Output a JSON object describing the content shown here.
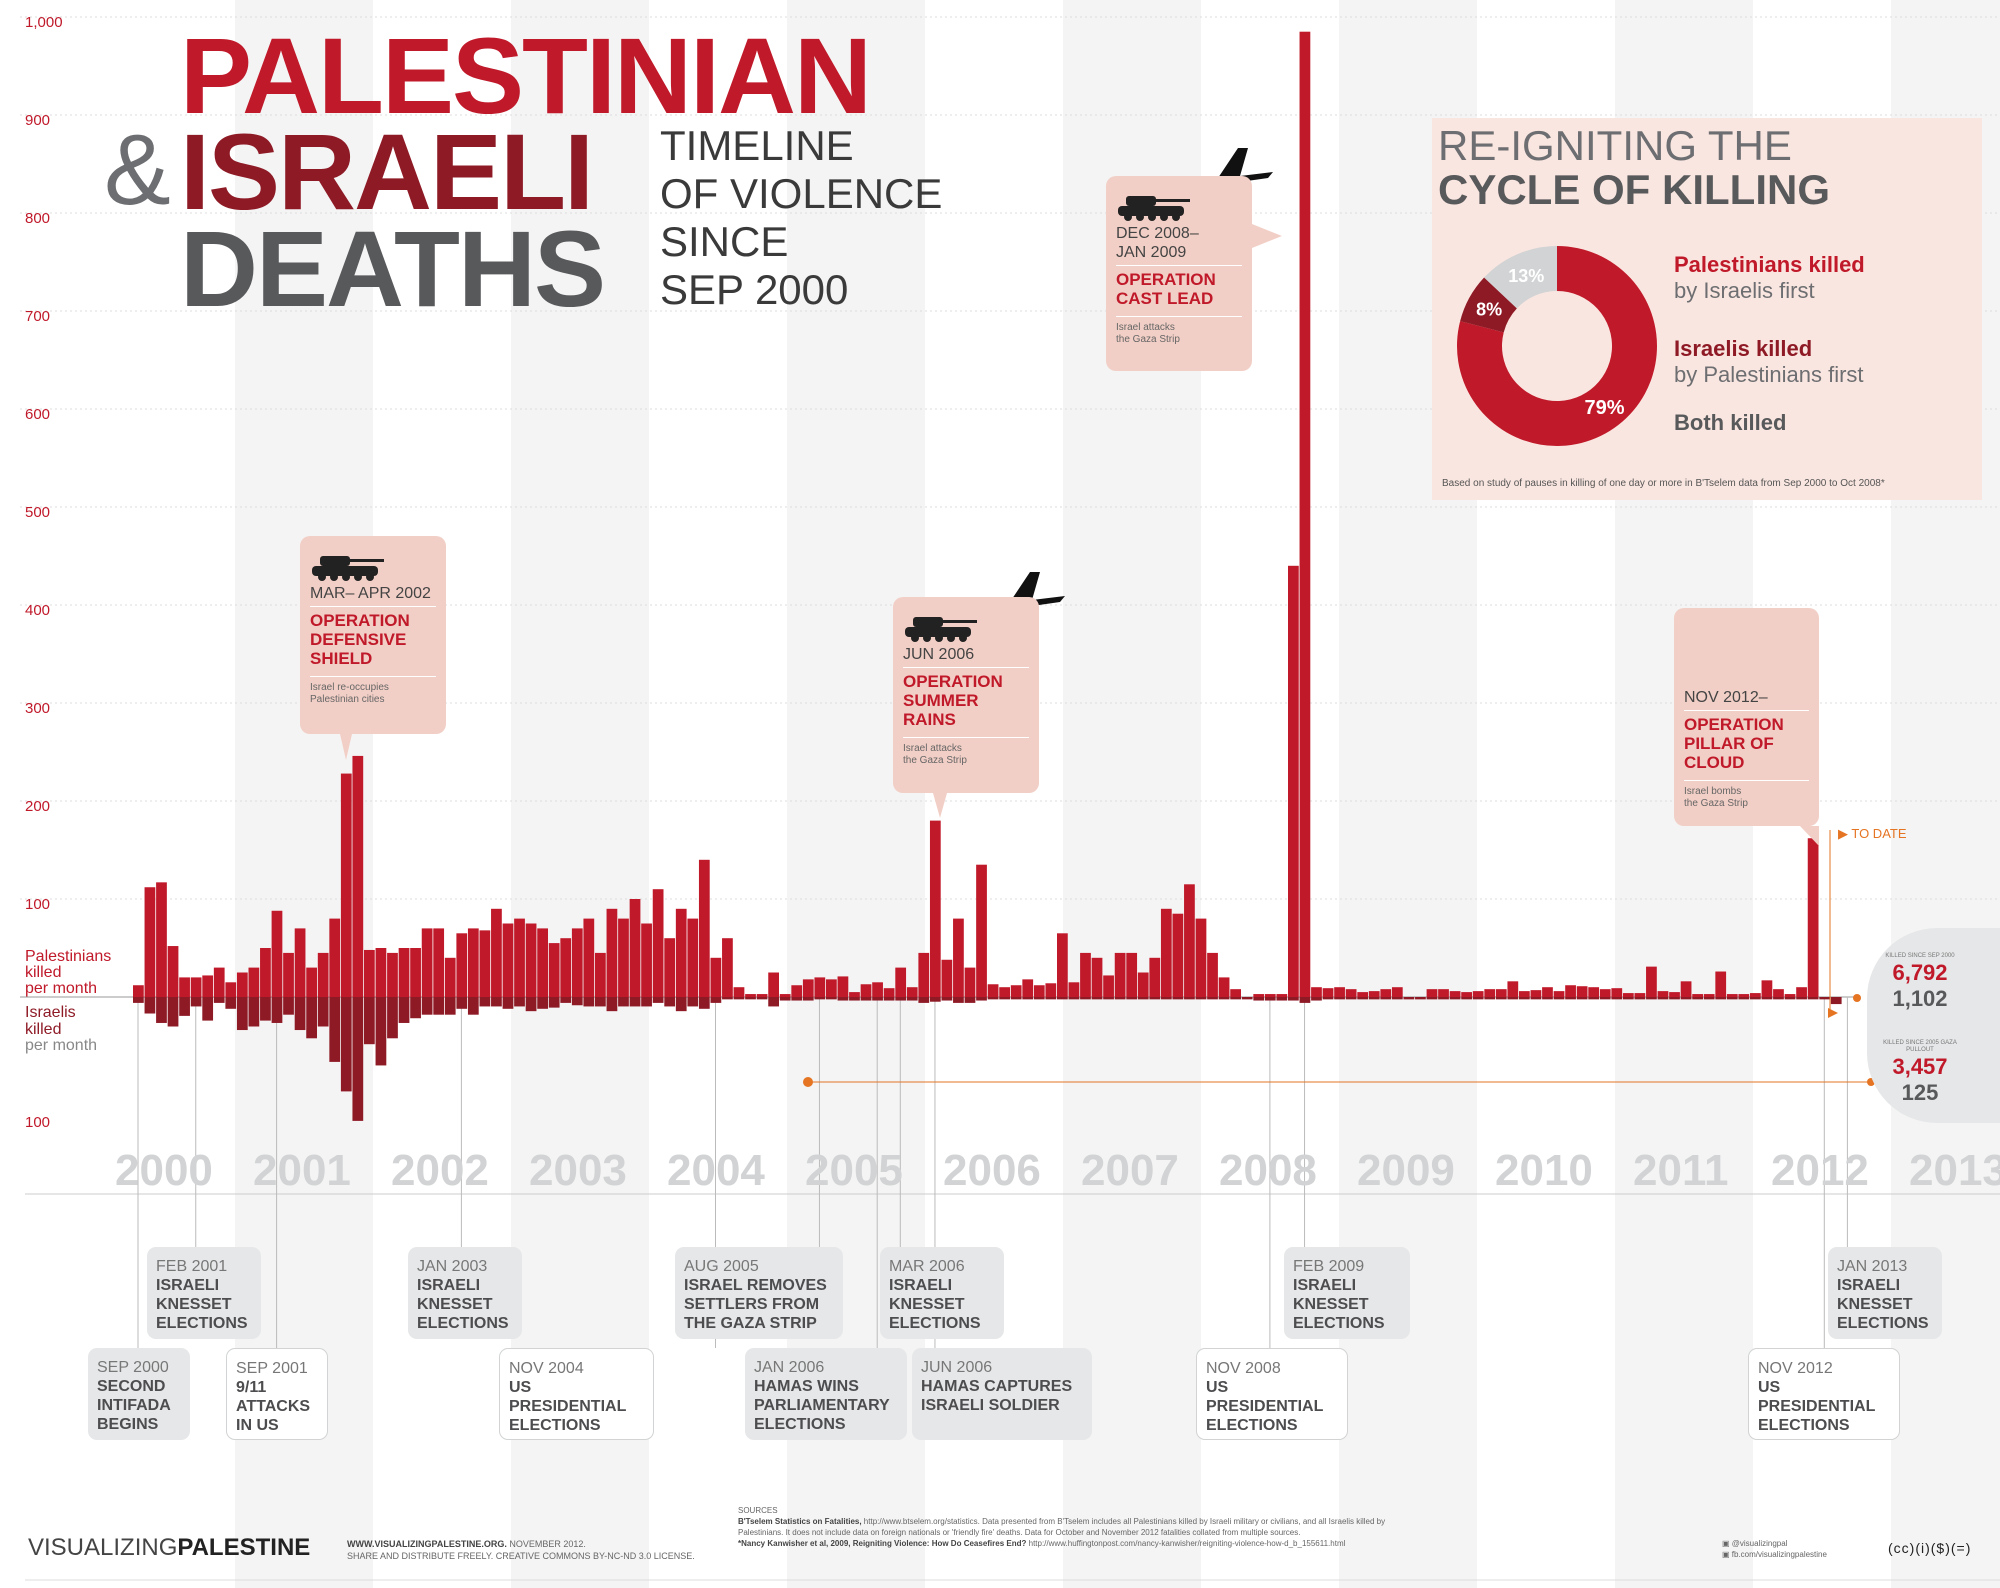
{
  "title": {
    "line1": "PALESTINIAN",
    "amp": "&",
    "line2": "ISRAELI",
    "line3": "DEATHS",
    "sub1": "TIMELINE",
    "sub2": "OF VIOLENCE",
    "sub3": "SINCE",
    "sub4": "SEP 2000"
  },
  "chart_data": {
    "type": "bar",
    "title": "Palestinian & Israeli Deaths - Timeline of Violence since Sep 2000",
    "x_start": "Sep 2000",
    "x_end": "Nov 2012",
    "year_labels": [
      "2000",
      "2001",
      "2002",
      "2003",
      "2004",
      "2005",
      "2006",
      "2007",
      "2008",
      "2009",
      "2010",
      "2011",
      "2012",
      "2013"
    ],
    "yticks_up": [
      "1,000",
      "900",
      "800",
      "700",
      "600",
      "500",
      "400",
      "300",
      "200",
      "100"
    ],
    "ytick_values_up": [
      1000,
      900,
      800,
      700,
      600,
      500,
      400,
      300,
      200,
      100
    ],
    "ytick_down": "100",
    "ytick_down_value": 100,
    "label_pal": [
      "Palestinians",
      "killed"
    ],
    "label_isr": [
      "Israelis",
      "killed"
    ],
    "per_month": "per month",
    "ylim_up": [
      0,
      1000
    ],
    "ylim_down": [
      0,
      120
    ],
    "series": [
      {
        "name": "Palestinians killed per month",
        "values": [
          12,
          112,
          117,
          52,
          20,
          20,
          22,
          30,
          15,
          25,
          30,
          50,
          88,
          45,
          70,
          30,
          45,
          80,
          228,
          246,
          48,
          50,
          45,
          50,
          50,
          70,
          70,
          40,
          65,
          70,
          68,
          90,
          75,
          80,
          75,
          70,
          55,
          60,
          70,
          80,
          45,
          90,
          80,
          100,
          75,
          110,
          60,
          90,
          80,
          140,
          40,
          60,
          10,
          3,
          3,
          25,
          3,
          12,
          18,
          20,
          18,
          21,
          5,
          13,
          15,
          9,
          30,
          10,
          45,
          180,
          38,
          80,
          30,
          135,
          13,
          10,
          12,
          18,
          12,
          14,
          65,
          15,
          45,
          40,
          22,
          45,
          45,
          25,
          40,
          90,
          85,
          115,
          80,
          45,
          20,
          8,
          0,
          3,
          3,
          3,
          440,
          985,
          10,
          9,
          10,
          8,
          5,
          6,
          8,
          10,
          0,
          0,
          8,
          8,
          6,
          5,
          6,
          8,
          8,
          16,
          6,
          7,
          10,
          6,
          12,
          11,
          10,
          8,
          9,
          4,
          4,
          31,
          6,
          5,
          16,
          3,
          3,
          26,
          3,
          3,
          4,
          17,
          8,
          3,
          10,
          162
        ]
      },
      {
        "name": "Israelis killed per month",
        "values": [
          5,
          14,
          22,
          25,
          16,
          8,
          20,
          5,
          10,
          28,
          25,
          20,
          22,
          15,
          28,
          35,
          25,
          55,
          80,
          105,
          40,
          58,
          35,
          22,
          18,
          15,
          15,
          15,
          10,
          15,
          8,
          8,
          10,
          8,
          12,
          10,
          9,
          5,
          7,
          8,
          8,
          12,
          8,
          8,
          8,
          5,
          8,
          12,
          8,
          10,
          5,
          2,
          2,
          2,
          2,
          8,
          3,
          3,
          3,
          2,
          2,
          3,
          3,
          3,
          3,
          3,
          3,
          3,
          5,
          4,
          3,
          5,
          5,
          3,
          2,
          2,
          2,
          2,
          2,
          2,
          2,
          2,
          2,
          2,
          2,
          2,
          2,
          2,
          2,
          2,
          2,
          2,
          2,
          2,
          2,
          2,
          2,
          3,
          3,
          3,
          3,
          5,
          3,
          2,
          2,
          2,
          2,
          2,
          2,
          2,
          2,
          2,
          2,
          2,
          2,
          2,
          2,
          2,
          2,
          2,
          2,
          2,
          2,
          2,
          2,
          2,
          2,
          2,
          2,
          2,
          2,
          2,
          2,
          2,
          2,
          2,
          2,
          2,
          2,
          2,
          2,
          2,
          2,
          2,
          2,
          2,
          2,
          6
        ]
      }
    ]
  },
  "callouts": [
    {
      "date": "MAR– APR 2002",
      "op1": "OPERATION",
      "op2": "DEFENSIVE",
      "op3": "SHIELD",
      "desc1": "Israel re-occupies",
      "desc2": "Palestinian cities"
    },
    {
      "date": "JUN 2006",
      "op1": "OPERATION",
      "op2": "SUMMER",
      "op3": "RAINS",
      "desc1": "Israel attacks",
      "desc2": "the Gaza Strip"
    },
    {
      "date1": "DEC 2008–",
      "date2": "JAN 2009",
      "op1": "OPERATION",
      "op2": "CAST LEAD",
      "desc1": "Israel attacks",
      "desc2": "the Gaza Strip"
    },
    {
      "date": "NOV 2012–",
      "op1": "OPERATION",
      "op2": "PILLAR OF",
      "op3": "CLOUD",
      "desc1": "Israel bombs",
      "desc2": "the Gaza Strip"
    }
  ],
  "events": [
    {
      "date": "SEP 2000",
      "l1": "SECOND",
      "l2": "INTIFADA",
      "l3": "BEGINS"
    },
    {
      "date": "FEB 2001",
      "l1": "ISRAELI",
      "l2": "KNESSET",
      "l3": "ELECTIONS"
    },
    {
      "date": "SEP 2001",
      "l1": "9/11",
      "l2": "ATTACKS",
      "l3": "IN US"
    },
    {
      "date": "JAN 2003",
      "l1": "ISRAELI",
      "l2": "KNESSET",
      "l3": "ELECTIONS"
    },
    {
      "date": "NOV 2004",
      "l1": "US",
      "l2": "PRESIDENTIAL",
      "l3": "ELECTIONS"
    },
    {
      "date": "AUG 2005",
      "l1": "ISRAEL REMOVES",
      "l2": "SETTLERS FROM",
      "l3": "THE GAZA STRIP"
    },
    {
      "date": "JAN 2006",
      "l1": "HAMAS WINS",
      "l2": "PARLIAMENTARY",
      "l3": "ELECTIONS"
    },
    {
      "date": "MAR 2006",
      "l1": "ISRAELI",
      "l2": "KNESSET",
      "l3": "ELECTIONS"
    },
    {
      "date": "JUN 2006",
      "l1": "HAMAS CAPTURES",
      "l2": "ISRAELI SOLDIER"
    },
    {
      "date": "NOV 2008",
      "l1": "US",
      "l2": "PRESIDENTIAL",
      "l3": "ELECTIONS"
    },
    {
      "date": "FEB 2009",
      "l1": "ISRAELI",
      "l2": "KNESSET",
      "l3": "ELECTIONS"
    },
    {
      "date": "NOV 2012",
      "l1": "US",
      "l2": "PRESIDENTIAL",
      "l3": "ELECTIONS"
    },
    {
      "date": "JAN 2013",
      "l1": "ISRAELI",
      "l2": "KNESSET",
      "l3": "ELECTIONS"
    }
  ],
  "panel": {
    "title1": "RE-IGNITING THE",
    "title2": "CYCLE OF KILLING",
    "slices": [
      {
        "label": "79%",
        "value": 79,
        "name_bold": "Palestinians killed",
        "name_rest": "by Israelis first",
        "color": "#c0192a"
      },
      {
        "label": "8%",
        "value": 8,
        "name_bold": "Israelis killed",
        "name_rest": "by Palestinians first",
        "color": "#8e1a26"
      },
      {
        "label": "13%",
        "value": 13,
        "name_bold": "Both killed",
        "name_rest": "",
        "color": "#d1d3d4"
      }
    ],
    "note": "Based on study of pauses in killing of one day or more in B'Tselem data from Sep 2000 to Oct 2008*"
  },
  "totals": {
    "to_date": "TO DATE",
    "since_sep": "KILLED SINCE SEP 2000",
    "pal_since_sep": "6,792",
    "isr_since_sep": "1,102",
    "since_pullout": "KILLED SINCE 2005 GAZA PULLOUT",
    "pal_since_pullout": "3,457",
    "isr_since_pullout": "125"
  },
  "footer": {
    "brand1": "VISUALIZING",
    "brand2": "PALESTINE",
    "url": "WWW.VISUALIZINGPALESTINE.ORG.",
    "date": " NOVEMBER 2012.",
    "license": "SHARE AND DISTRIBUTE FREELY. CREATIVE COMMONS BY-NC-ND 3.0 LICENSE.",
    "sources_label": "SOURCES",
    "source1_bold": "B'Tselem Statistics on Fatalities,",
    "source1": " http://www.btselem.org/statistics. Data presented from B'Tselem includes all Palestinians killed by Israeli military or civilians, and all Israelis killed by",
    "source1b": "Palestinians. It does not include data on foreign nationals or 'friendly fire' deaths. Data for October and November 2012 fatalities collated from multiple sources.",
    "source2_bold": "*Nancy Kanwisher et al, 2009, Reigniting Violence: How Do Ceasefires End?",
    "source2": " http://www.huffingtonpost.com/nancy-kanwisher/reigniting-violence-how-d_b_155611.html",
    "twitter": "@visualizingpal",
    "facebook": "fb.com/visualizingpalestine",
    "cc": "(cc)(i)($)(=)"
  },
  "colors": {
    "pal": "#c0192a",
    "isr": "#8e1a26",
    "orange": "#e57423",
    "grey_text": "#d1d3d4",
    "band": "#f4f4f4"
  }
}
